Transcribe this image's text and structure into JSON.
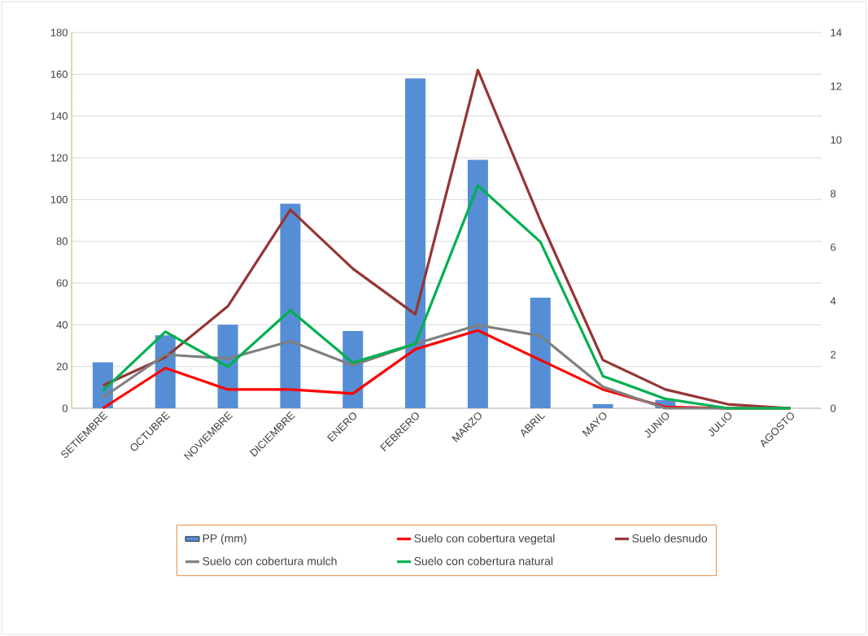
{
  "chart_data": {
    "type": "bar",
    "categories": [
      "SETIEMBRE",
      "OCTUBRE",
      "NOVIEMBRE",
      "DICIEMBRE",
      "ENERO",
      "FEBRERO",
      "MARZO",
      "ABRIL",
      "MAYO",
      "JUNIO",
      "JULIO",
      "AGOSTO"
    ],
    "series": [
      {
        "name": "PP (mm)",
        "color": "#558ed5",
        "values": [
          22,
          35,
          40,
          98,
          37,
          158,
          119,
          53,
          2,
          4,
          0,
          0
        ]
      },
      {
        "name": "Suelo con cobertura vegetal",
        "type": "line",
        "axis": "y2",
        "color": "#ff0000",
        "values": [
          0,
          1.5,
          0.7,
          0.7,
          0.55,
          2.2,
          2.9,
          1.8,
          0.7,
          0.05,
          0,
          0
        ]
      },
      {
        "name": "Suelo desnudo",
        "type": "line",
        "axis": "y2",
        "color": "#943634",
        "values": [
          0.85,
          1.9,
          3.8,
          7.4,
          5.2,
          3.5,
          12.6,
          7.0,
          1.8,
          0.7,
          0.15,
          0
        ]
      },
      {
        "name": "Suelo con cobertura mulch",
        "type": "line",
        "axis": "y2",
        "color": "#808080",
        "values": [
          0.4,
          2.0,
          1.85,
          2.5,
          1.6,
          2.4,
          3.1,
          2.7,
          0.8,
          0,
          0,
          0
        ]
      },
      {
        "name": "Suelo con cobertura natural",
        "type": "line",
        "axis": "y2",
        "color": "#00b050",
        "values": [
          0.65,
          2.85,
          1.55,
          3.65,
          1.7,
          2.4,
          8.3,
          6.2,
          1.2,
          0.35,
          0,
          0
        ]
      }
    ],
    "ylim": [
      0,
      180
    ],
    "yticks": [
      0,
      20,
      40,
      60,
      80,
      100,
      120,
      140,
      160,
      180
    ],
    "y2lim": [
      0,
      14
    ],
    "y2ticks": [
      0,
      2,
      4,
      6,
      8,
      10,
      12,
      14
    ],
    "grid": "y",
    "legend": "bottom"
  }
}
